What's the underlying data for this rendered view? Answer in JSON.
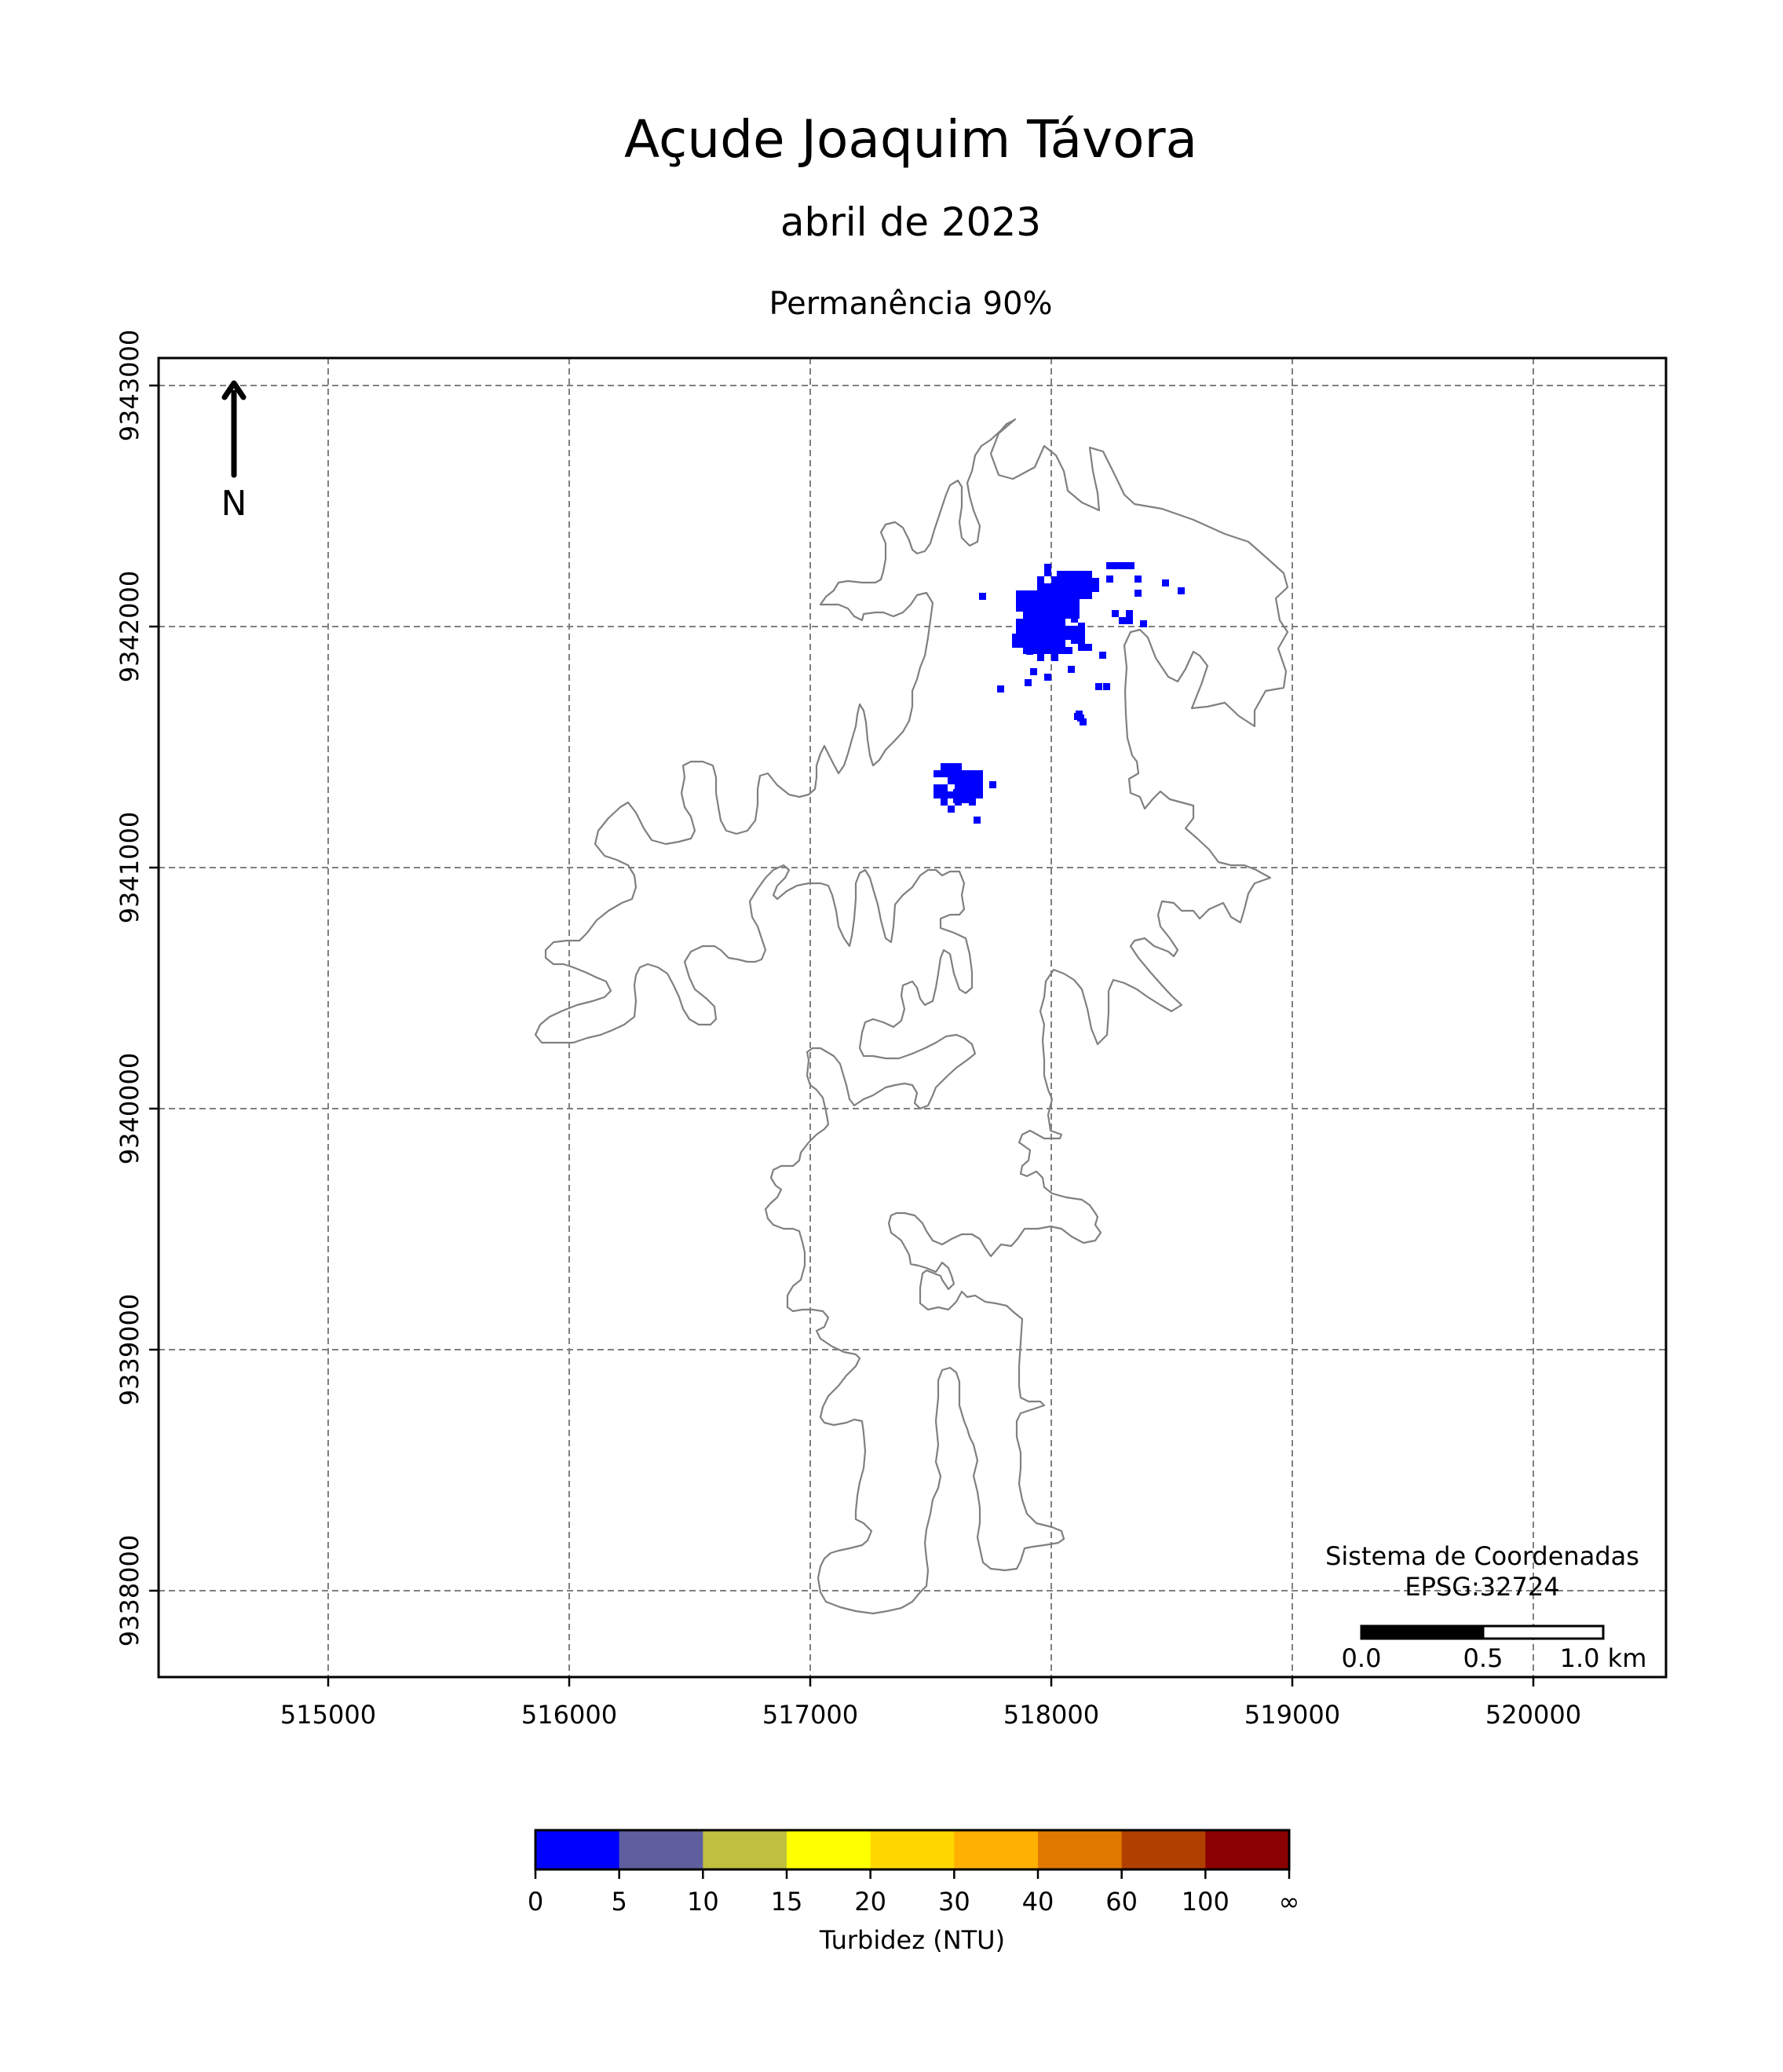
{
  "map": {
    "title": "Açude Joaquim Távora",
    "subtitle": "abril de 2023",
    "subtitle2": "Permanência 90%",
    "crs_label_line1": "Sistema de Coordenadas",
    "crs_label_line2": "EPSG:32724",
    "north_label": "N",
    "x_ticks": [
      "515000",
      "516000",
      "517000",
      "518000",
      "519000",
      "520000"
    ],
    "y_ticks": [
      "9343000",
      "9342000",
      "9341000",
      "9340000",
      "9339000",
      "9338000"
    ],
    "scale_bar": {
      "labels": [
        "0.0",
        "0.5",
        "1.0 km"
      ],
      "length_km": 1.0
    },
    "outline_color": "#808080",
    "grid_color": "#808080",
    "grid": true
  },
  "colorbar": {
    "label": "Turbidez (NTU)",
    "ticks": [
      "0",
      "5",
      "10",
      "15",
      "20",
      "30",
      "40",
      "60",
      "100",
      "∞"
    ],
    "colors": [
      "#0000ff",
      "#5f5fa0",
      "#bfbf40",
      "#ffff00",
      "#ffd700",
      "#ffb000",
      "#e07800",
      "#b04000",
      "#8b0000"
    ]
  },
  "chart_data": {
    "type": "heatmap",
    "title": "Açude Joaquim Távora",
    "x_range": [
      514300,
      520550
    ],
    "y_range": [
      9337650,
      9343110
    ],
    "legend": "bottom",
    "clusters": [
      {
        "class": "0-5 NTU",
        "color": "#0000ff",
        "center": [
          517950,
          9342020
        ]
      },
      {
        "class": "0-5 NTU",
        "color": "#0000ff",
        "center": [
          518300,
          9342250
        ]
      },
      {
        "class": "0-5 NTU",
        "color": "#0000ff",
        "center": [
          517600,
          9341350
        ]
      }
    ]
  }
}
